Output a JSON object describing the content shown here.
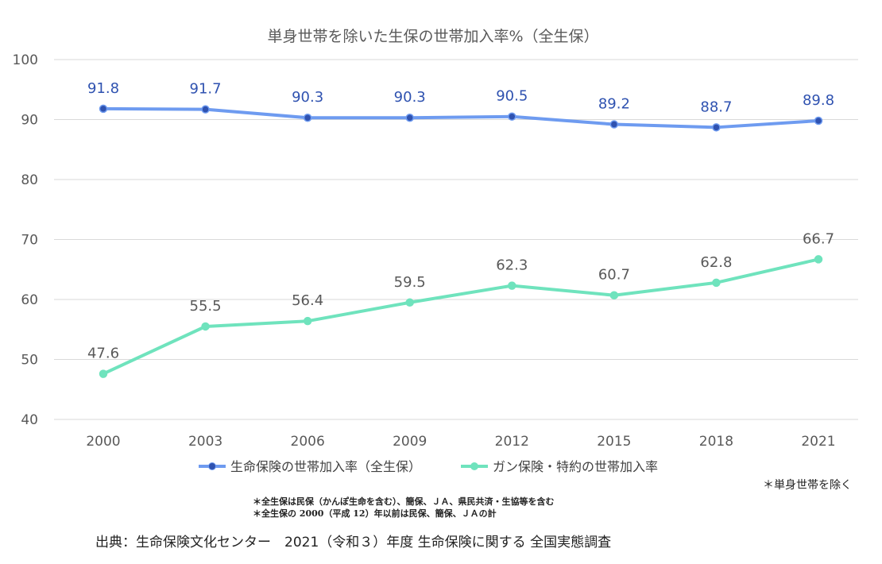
{
  "chart_data": {
    "type": "line",
    "title": "単身世帯を除いた生保の世帯加入率%（全生保）",
    "x": [
      "2000",
      "2003",
      "2006",
      "2009",
      "2012",
      "2015",
      "2018",
      "2021"
    ],
    "ylim": [
      40,
      100
    ],
    "yticks": [
      40,
      50,
      60,
      70,
      80,
      90,
      100
    ],
    "grid": true,
    "legend_position": "bottom",
    "series": [
      {
        "name": "生命保険の世帯加入率（全生保）",
        "color": "#6e9bf0",
        "label_color": "#2f52b0",
        "values": [
          91.8,
          91.7,
          90.3,
          90.3,
          90.5,
          89.2,
          88.7,
          89.8
        ]
      },
      {
        "name": "ガン保険・特約の世帯加入率",
        "color": "#6fe3bd",
        "label_color": "#595959",
        "values": [
          47.6,
          55.5,
          56.4,
          59.5,
          62.3,
          60.7,
          62.8,
          66.7
        ]
      }
    ]
  },
  "notes": {
    "right": "＊単身世帯を除く",
    "line1": "＊全生保は民保（かんぽ生命を含む）、簡保、ＪＡ、県民共済・生協等を含む",
    "line2": "＊全生保の 2000（平成 12）年以前は民保、簡保、ＪＡの計"
  },
  "source": "出典：生命保険文化センター　2021（令和３）年度 生命保険に関する 全国実態調査"
}
